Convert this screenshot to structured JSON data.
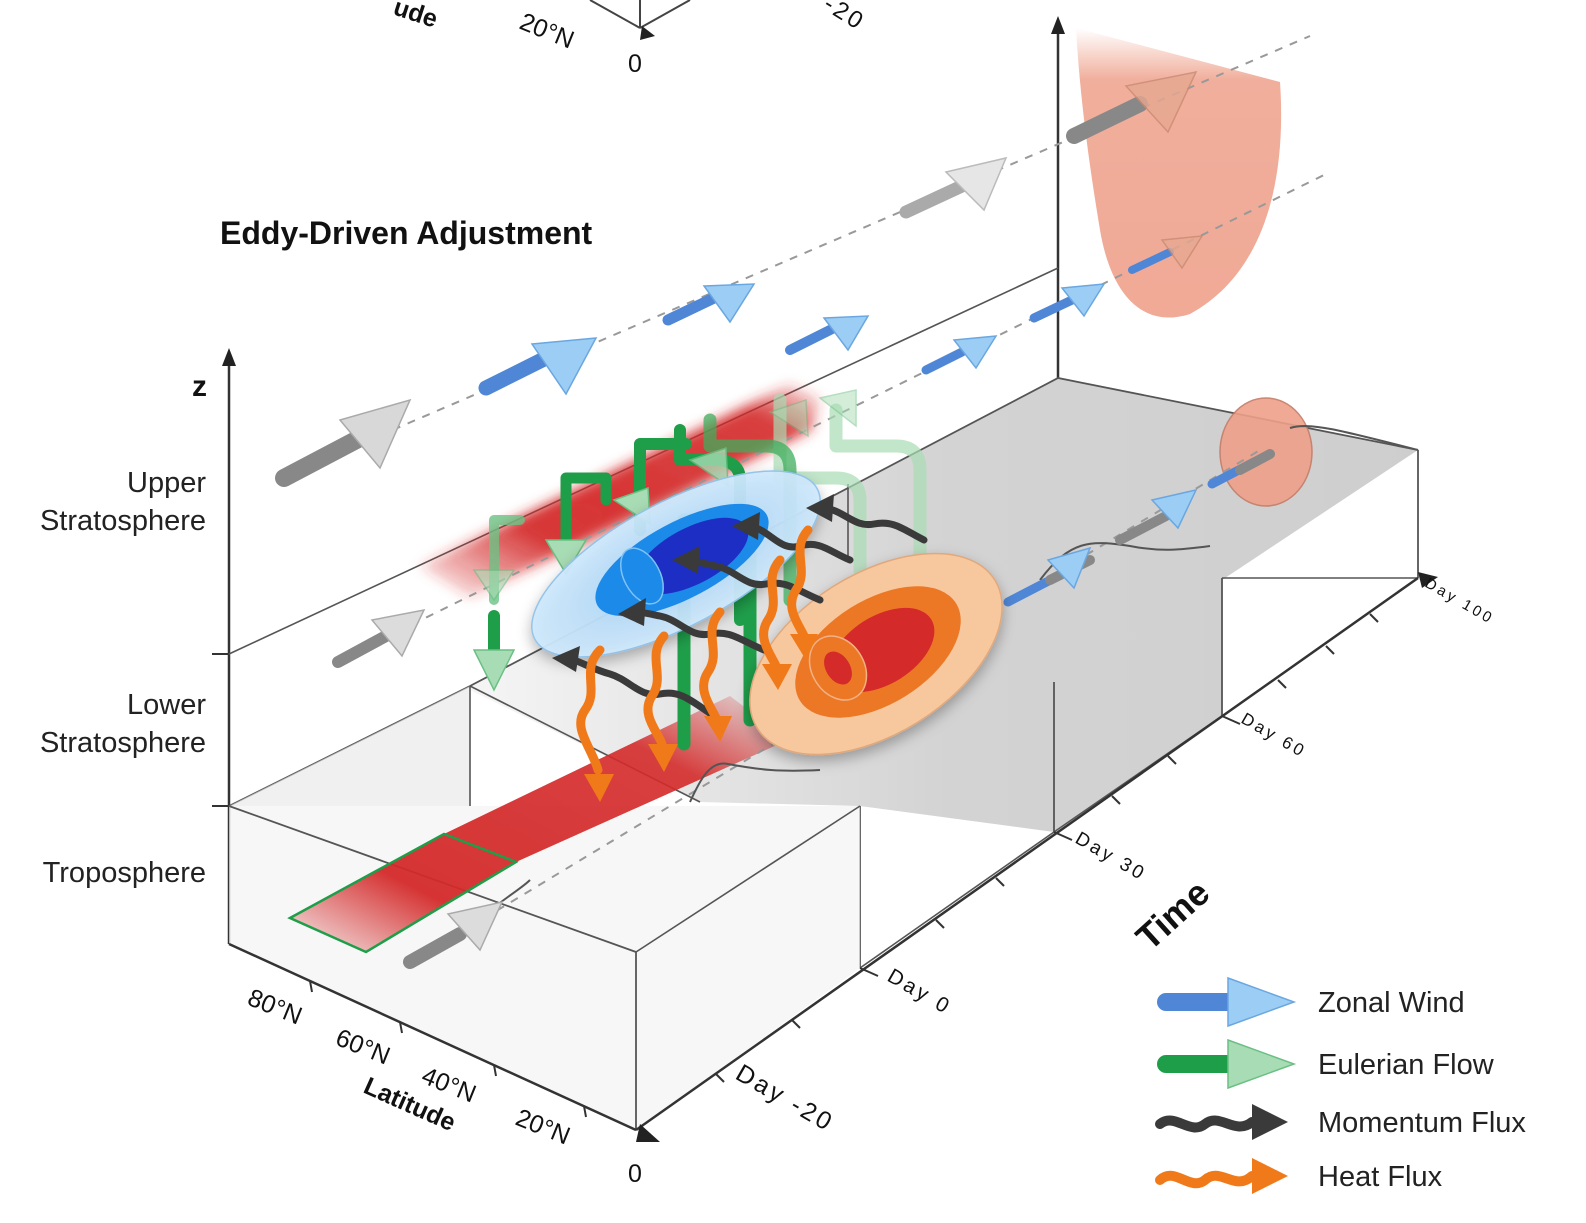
{
  "title": "Eddy-Driven Adjustment",
  "vertical_axis": {
    "label": "z",
    "layers": [
      {
        "line1": "Upper",
        "line2": "Stratosphere"
      },
      {
        "line1": "Lower",
        "line2": "Stratosphere"
      },
      {
        "line1": "Troposphere"
      }
    ]
  },
  "latitude_axis": {
    "label": "Latitude",
    "ticks": [
      "80°N",
      "60°N",
      "40°N",
      "20°N",
      "0"
    ]
  },
  "time_axis": {
    "label": "Time",
    "ticks": [
      "Day -20",
      "Day  0",
      "Day 30",
      "Day 60",
      "Day 100"
    ]
  },
  "top_fragment": {
    "latitude_label_fragment": "ude",
    "tick_20n": "20°N",
    "tick_0": "0",
    "day_fragment": "-20"
  },
  "legend": [
    {
      "label": "Zonal Wind",
      "icon": "zonal-wind-arrow-icon",
      "color": "#4f86d6"
    },
    {
      "label": "Eulerian Flow",
      "icon": "eulerian-flow-arrow-icon",
      "color": "#1f9e4a"
    },
    {
      "label": "Momentum Flux",
      "icon": "momentum-flux-wavy-arrow-icon",
      "color": "#3a3a3a"
    },
    {
      "label": "Heat Flux",
      "icon": "heat-flux-wavy-arrow-icon",
      "color": "#f07a1a"
    }
  ],
  "colors": {
    "warm_anomaly": "#d42a2a",
    "cold_anomaly": "#1a2fc4",
    "box_shade": "#c9c9c9",
    "pink_anomaly": "#eea08a"
  }
}
